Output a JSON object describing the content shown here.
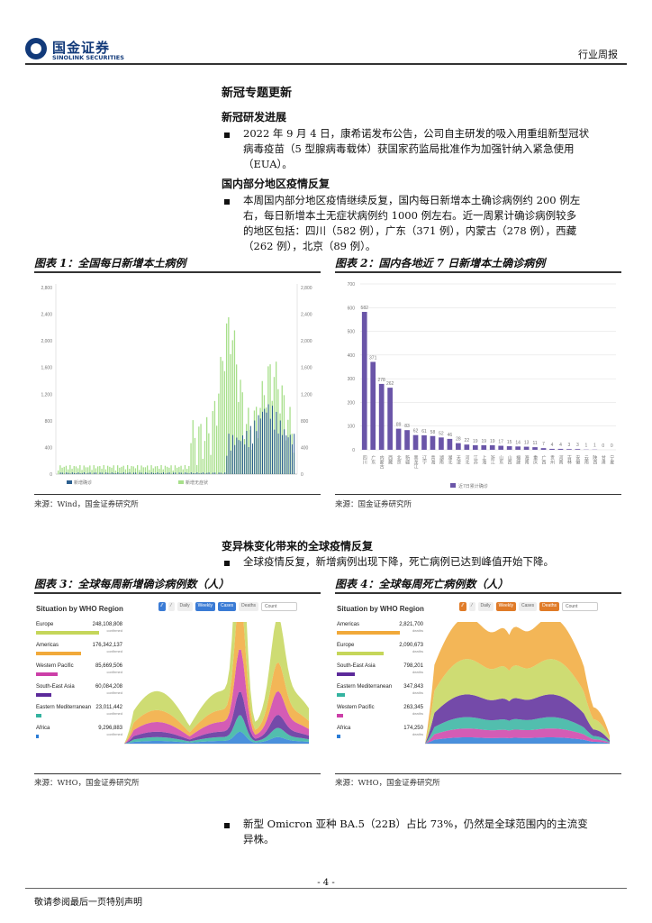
{
  "header": {
    "logo_cn": "国金证券",
    "logo_en": "SINOLINK SECURITIES",
    "report_type": "行业周报"
  },
  "section_title": "新冠专题更新",
  "rd": {
    "heading": "新冠研发进展",
    "bullet": "2022 年 9 月 4 日，康希诺发布公告，公司自主研发的吸入用重组新型冠状病毒疫苗（5 型腺病毒载体）获国家药监局批准作为加强针纳入紧急使用（EUA）。",
    "lines": [
      "2022 年 9 月 4 日，康希诺发布公告，公司自主研发的吸入用重组新型冠状",
      "病毒疫苗（5 型腺病毒载体）获国家药监局批准作为加强针纳入紧急使用",
      "（EUA）。"
    ]
  },
  "domestic": {
    "heading": "国内部分地区疫情反复",
    "lines": [
      "本周国内部分地区疫情继续反复，国内每日新增本土确诊病例约 200 例左",
      "右，每日新增本土无症状病例约 1000 例左右。近一周累计确诊病例较多",
      "的地区包括：四川（582 例），广东（371 例），内蒙古（278 例），西藏",
      "（262 例），北京（89 例）。"
    ]
  },
  "fig1": {
    "title": "图表 1：全国每日新增本土病例",
    "legend": [
      "新增确诊",
      "新增无症状"
    ],
    "left_ticks": [
      "2,800",
      "2,400",
      "2,000",
      "1,600",
      "1,200",
      "800",
      "400",
      "0"
    ],
    "right_ticks": [
      "2,800",
      "2,400",
      "2,000",
      "1,600",
      "1,200",
      "800",
      "400",
      "0"
    ],
    "source": "来源：Wind，国金证券研究所"
  },
  "fig2": {
    "title": "图表 2：国内各地近 7 日新增本土确诊病例",
    "source": "来源：国金证券研究所",
    "legend": "近7日累计确诊",
    "chart_data": {
      "type": "bar",
      "ylim": [
        0,
        700
      ],
      "yticks": [
        "0",
        "100",
        "200",
        "300",
        "400",
        "500",
        "600",
        "700"
      ],
      "categories": [
        "四川",
        "广东",
        "内蒙古",
        "西藏",
        "北京",
        "新疆",
        "黑龙江",
        "辽宁",
        "青海",
        "湖南",
        "湖北",
        "天津",
        "河北",
        "江苏",
        "上海",
        "浙江",
        "山东",
        "山西",
        "福建",
        "海南",
        "重庆",
        "广西",
        "贵州",
        "河南",
        "吉林",
        "安徽",
        "云南",
        "陕西",
        "甘肃",
        "宁夏"
      ],
      "values": [
        582,
        371,
        278,
        262,
        89,
        83,
        62,
        61,
        58,
        52,
        46,
        28,
        22,
        19,
        19,
        19,
        17,
        15,
        14,
        13,
        11,
        7,
        4,
        4,
        3,
        3,
        1,
        1,
        0,
        0
      ]
    }
  },
  "variant": {
    "heading": "变异株变化带来的全球疫情反复",
    "bullet": "全球疫情反复，新增病例出现下降，死亡病例已达到峰值开始下降。"
  },
  "fig3": {
    "title": "图表 3：全球每周新增确诊病例数（人）",
    "panel_title": "Situation by WHO Region",
    "buttons": [
      "Daily",
      "Weekly",
      "Cases",
      "Deaths",
      "Count"
    ],
    "regions": [
      {
        "name": "Europe",
        "value": "248,108,808",
        "sub": "confirmed",
        "color": "#c5d65a"
      },
      {
        "name": "Americas",
        "value": "176,342,137",
        "sub": "confirmed",
        "color": "#f1a93a"
      },
      {
        "name": "Western Pacific",
        "value": "85,669,506",
        "sub": "confirmed",
        "color": "#cc3fa8"
      },
      {
        "name": "South-East Asia",
        "value": "60,084,208",
        "sub": "confirmed",
        "color": "#5c2a9a"
      },
      {
        "name": "Eastern Mediterranean",
        "value": "23,011,442",
        "sub": "confirmed",
        "color": "#34b3a0"
      },
      {
        "name": "Africa",
        "value": "9,296,883",
        "sub": "confirmed",
        "color": "#2a7cd6"
      }
    ],
    "source": "来源：WHO，国金证券研究所"
  },
  "fig4": {
    "title": "图表 4：全球每周死亡病例数（人）",
    "panel_title": "Situation by WHO Region",
    "buttons": [
      "Daily",
      "Weekly",
      "Cases",
      "Deaths",
      "Count"
    ],
    "regions": [
      {
        "name": "Americas",
        "value": "2,821,700",
        "sub": "deaths",
        "color": "#f1a93a"
      },
      {
        "name": "Europe",
        "value": "2,090,673",
        "sub": "deaths",
        "color": "#c5d65a"
      },
      {
        "name": "South-East Asia",
        "value": "798,201",
        "sub": "deaths",
        "color": "#5c2a9a"
      },
      {
        "name": "Eastern Mediterranean",
        "value": "347,843",
        "sub": "deaths",
        "color": "#34b3a0"
      },
      {
        "name": "Western Pacific",
        "value": "263,345",
        "sub": "deaths",
        "color": "#cc3fa8"
      },
      {
        "name": "Africa",
        "value": "174,250",
        "sub": "deaths",
        "color": "#2a7cd6"
      }
    ],
    "source": "来源：WHO，国金证券研究所"
  },
  "omicron": {
    "lines": [
      "新型 Omicron 亚种 BA.5（22B）占比 73%，仍然是全球范围内的主流变",
      "异株。"
    ]
  },
  "footer": {
    "page_no": "- 4 -",
    "disclaimer": "敬请参阅最后一页特别声明"
  }
}
